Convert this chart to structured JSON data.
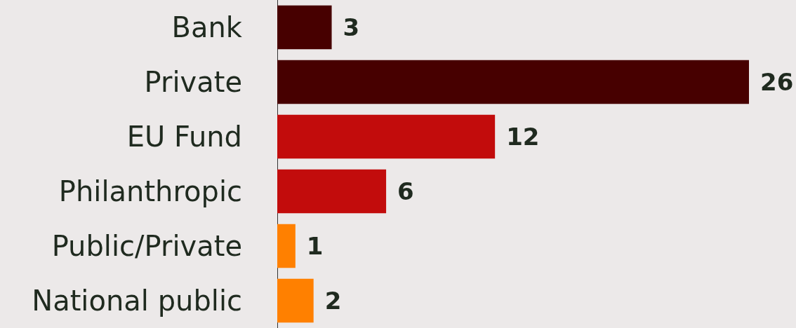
{
  "chart_data": {
    "type": "bar",
    "orientation": "horizontal",
    "categories": [
      "Bank",
      "Private",
      "EU Fund",
      "Philanthropic",
      "Public/Private",
      "National public"
    ],
    "values": [
      3,
      26,
      12,
      6,
      1,
      2
    ],
    "colors": [
      "#470000",
      "#470000",
      "#c20c0c",
      "#c20c0c",
      "#ff8000",
      "#ff8000"
    ],
    "data_labels": true
  }
}
